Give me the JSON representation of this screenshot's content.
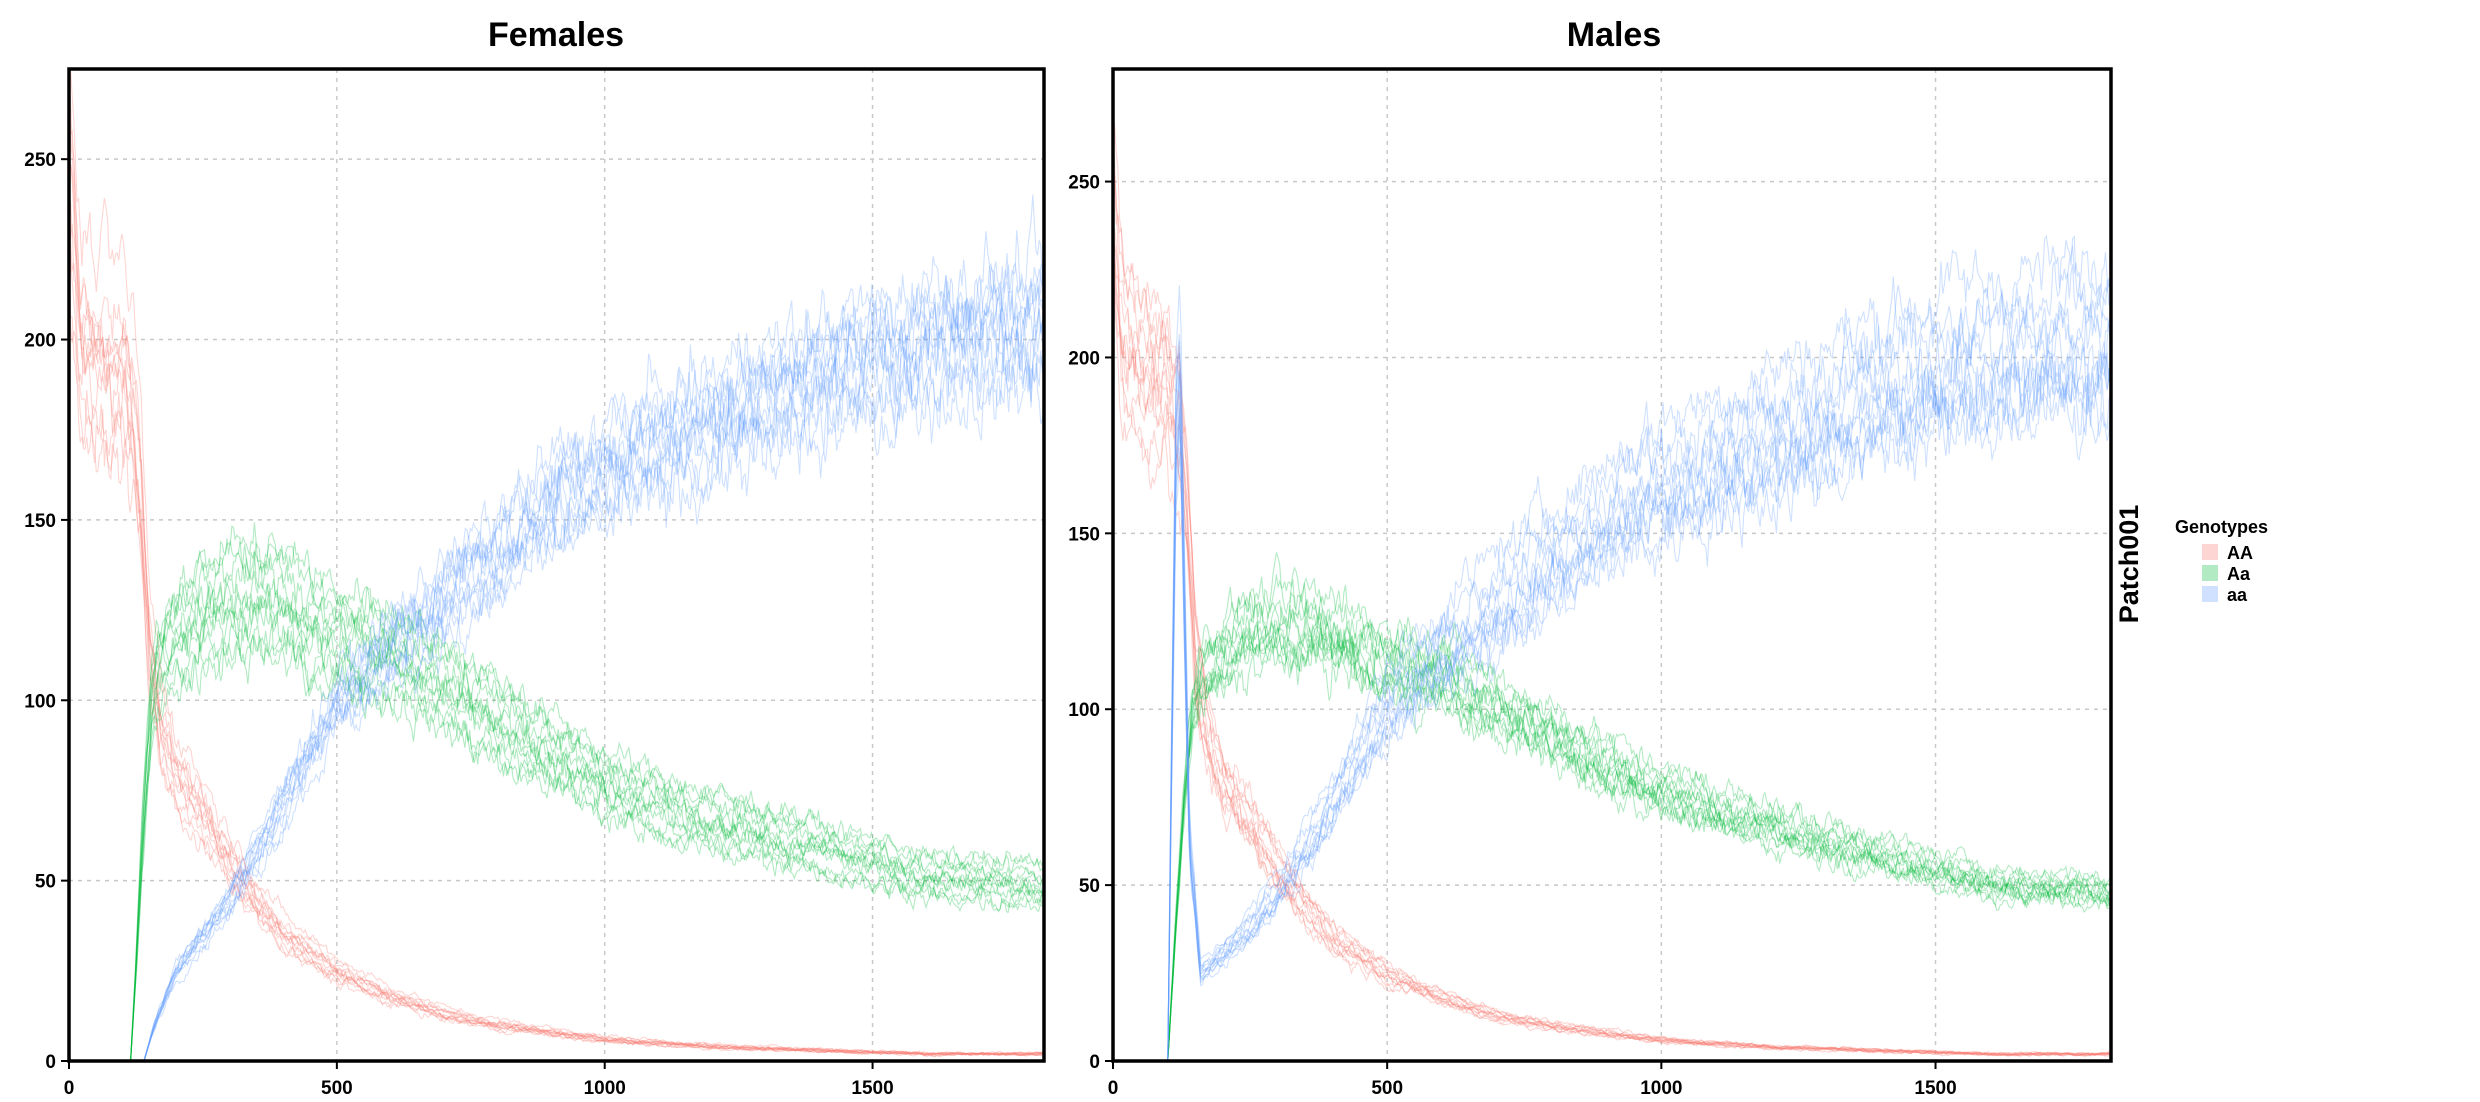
{
  "chart_data": [
    {
      "type": "line",
      "title": "Females",
      "xlabel": "",
      "ylabel": "",
      "xlim": [
        0,
        1820
      ],
      "ylim": [
        0,
        275
      ],
      "x_ticks": [
        0,
        500,
        1000,
        1500
      ],
      "y_ticks": [
        0,
        50,
        100,
        150,
        200,
        250
      ],
      "grid": true,
      "replicates_per_series": 12,
      "series": [
        {
          "name": "AA",
          "color": "#F8766D",
          "x": [
            0,
            20,
            60,
            100,
            120,
            135,
            150,
            170,
            200,
            250,
            300,
            350,
            400,
            500,
            600,
            700,
            800,
            900,
            1000,
            1200,
            1400,
            1600,
            1820
          ],
          "y": [
            250,
            200,
            193,
            190,
            180,
            155,
            115,
            95,
            80,
            68,
            55,
            45,
            35,
            25,
            18,
            13,
            10,
            8,
            6,
            4,
            3,
            2,
            2
          ]
        },
        {
          "name": "Aa",
          "color": "#00BA38",
          "x": [
            115,
            125,
            135,
            145,
            155,
            165,
            200,
            250,
            300,
            350,
            400,
            500,
            600,
            700,
            800,
            900,
            1000,
            1200,
            1400,
            1600,
            1820
          ],
          "y": [
            0,
            25,
            55,
            80,
            100,
            108,
            115,
            120,
            125,
            125,
            123,
            115,
            110,
            102,
            93,
            84,
            75,
            65,
            58,
            50,
            48
          ]
        },
        {
          "name": "aa",
          "color": "#619CFF",
          "x": [
            140,
            160,
            200,
            250,
            300,
            350,
            400,
            500,
            600,
            700,
            800,
            900,
            1000,
            1200,
            1400,
            1600,
            1820
          ],
          "y": [
            0,
            10,
            25,
            35,
            45,
            58,
            72,
            100,
            115,
            128,
            140,
            155,
            165,
            178,
            190,
            200,
            205
          ]
        }
      ]
    },
    {
      "type": "line",
      "title": "Males",
      "xlabel": "",
      "ylabel": "",
      "xlim": [
        0,
        1820
      ],
      "ylim": [
        0,
        282
      ],
      "x_ticks": [
        0,
        500,
        1000,
        1500
      ],
      "y_ticks": [
        0,
        50,
        100,
        150,
        200,
        250
      ],
      "grid": true,
      "replicates_per_series": 12,
      "series": [
        {
          "name": "AA",
          "color": "#F8766D",
          "x": [
            0,
            20,
            60,
            100,
            120,
            135,
            150,
            170,
            200,
            250,
            300,
            350,
            400,
            500,
            600,
            700,
            800,
            900,
            1000,
            1200,
            1400,
            1600,
            1820
          ],
          "y": [
            245,
            205,
            197,
            195,
            185,
            160,
            118,
            95,
            80,
            68,
            55,
            45,
            35,
            25,
            18,
            13,
            10,
            8,
            6,
            4,
            3,
            2,
            2
          ]
        },
        {
          "name": "Aa",
          "color": "#00BA38",
          "x": [
            100,
            115,
            130,
            145,
            160,
            200,
            250,
            300,
            350,
            400,
            500,
            600,
            700,
            800,
            900,
            1000,
            1200,
            1400,
            1600,
            1820
          ],
          "y": [
            0,
            40,
            75,
            100,
            110,
            115,
            120,
            122,
            122,
            120,
            113,
            108,
            100,
            92,
            84,
            76,
            66,
            58,
            50,
            48
          ]
        },
        {
          "name": "aa",
          "color": "#619CFF",
          "x": [
            100,
            108,
            115,
            122,
            130,
            140,
            160,
            200,
            250,
            300,
            350,
            400,
            500,
            600,
            700,
            800,
            900,
            1000,
            1200,
            1400,
            1600,
            1820
          ],
          "y": [
            0,
            100,
            180,
            200,
            130,
            60,
            25,
            30,
            38,
            48,
            60,
            72,
            100,
            115,
            128,
            140,
            152,
            162,
            175,
            188,
            198,
            202
          ]
        }
      ]
    }
  ],
  "strip_label": "Patch001",
  "legend": {
    "title": "Genotypes",
    "position": "right",
    "items": [
      {
        "label": "AA",
        "color": "#F8766D"
      },
      {
        "label": "Aa",
        "color": "#00BA38"
      },
      {
        "label": "aa",
        "color": "#619CFF"
      }
    ]
  }
}
